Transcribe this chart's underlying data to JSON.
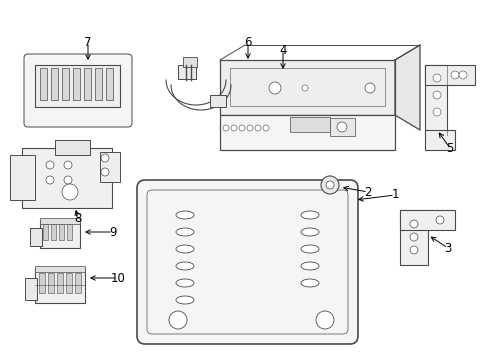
{
  "background_color": "#ffffff",
  "line_color": "#4a4a4a",
  "text_color": "#000000",
  "fig_w": 4.9,
  "fig_h": 3.6,
  "dpi": 100,
  "xlim": [
    0,
    490
  ],
  "ylim": [
    0,
    360
  ]
}
